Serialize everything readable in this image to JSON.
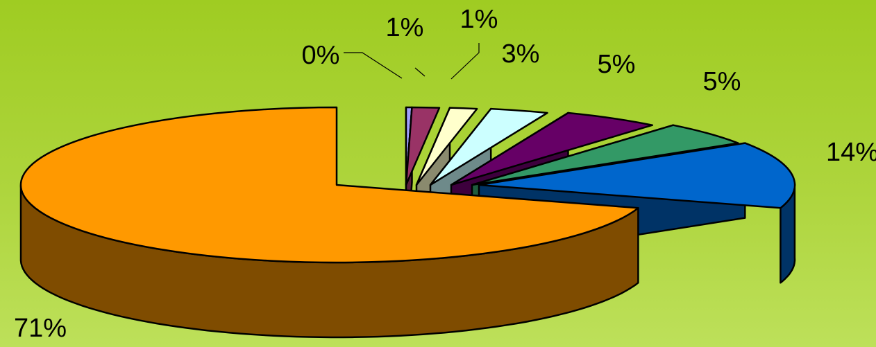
{
  "chart_data": {
    "type": "pie",
    "style": "3d-exploded",
    "title": "",
    "slices": [
      {
        "value": 0.3,
        "label": "0%",
        "top_color": "#9f9fff",
        "side_color": "#5a5ab4"
      },
      {
        "value": 1.4,
        "label": "1%",
        "top_color": "#993366",
        "side_color": "#5c1f3d"
      },
      {
        "value": 1.4,
        "label": "1%",
        "top_color": "#ffffcc",
        "side_color": "#8a8a6e"
      },
      {
        "value": 3.0,
        "label": "3%",
        "top_color": "#ccffff",
        "side_color": "#6e8a8a"
      },
      {
        "value": 5.0,
        "label": "5%",
        "top_color": "#660066",
        "side_color": "#3d003d"
      },
      {
        "value": 5.0,
        "label": "5%",
        "top_color": "#339966",
        "side_color": "#1f5c3d"
      },
      {
        "value": 14.0,
        "label": "14%",
        "top_color": "#0066cc",
        "side_color": "#003366"
      },
      {
        "value": 70.9,
        "label": "71%",
        "top_color": "#ff9900",
        "side_color": "#7f4c00"
      }
    ],
    "legend": "none"
  }
}
